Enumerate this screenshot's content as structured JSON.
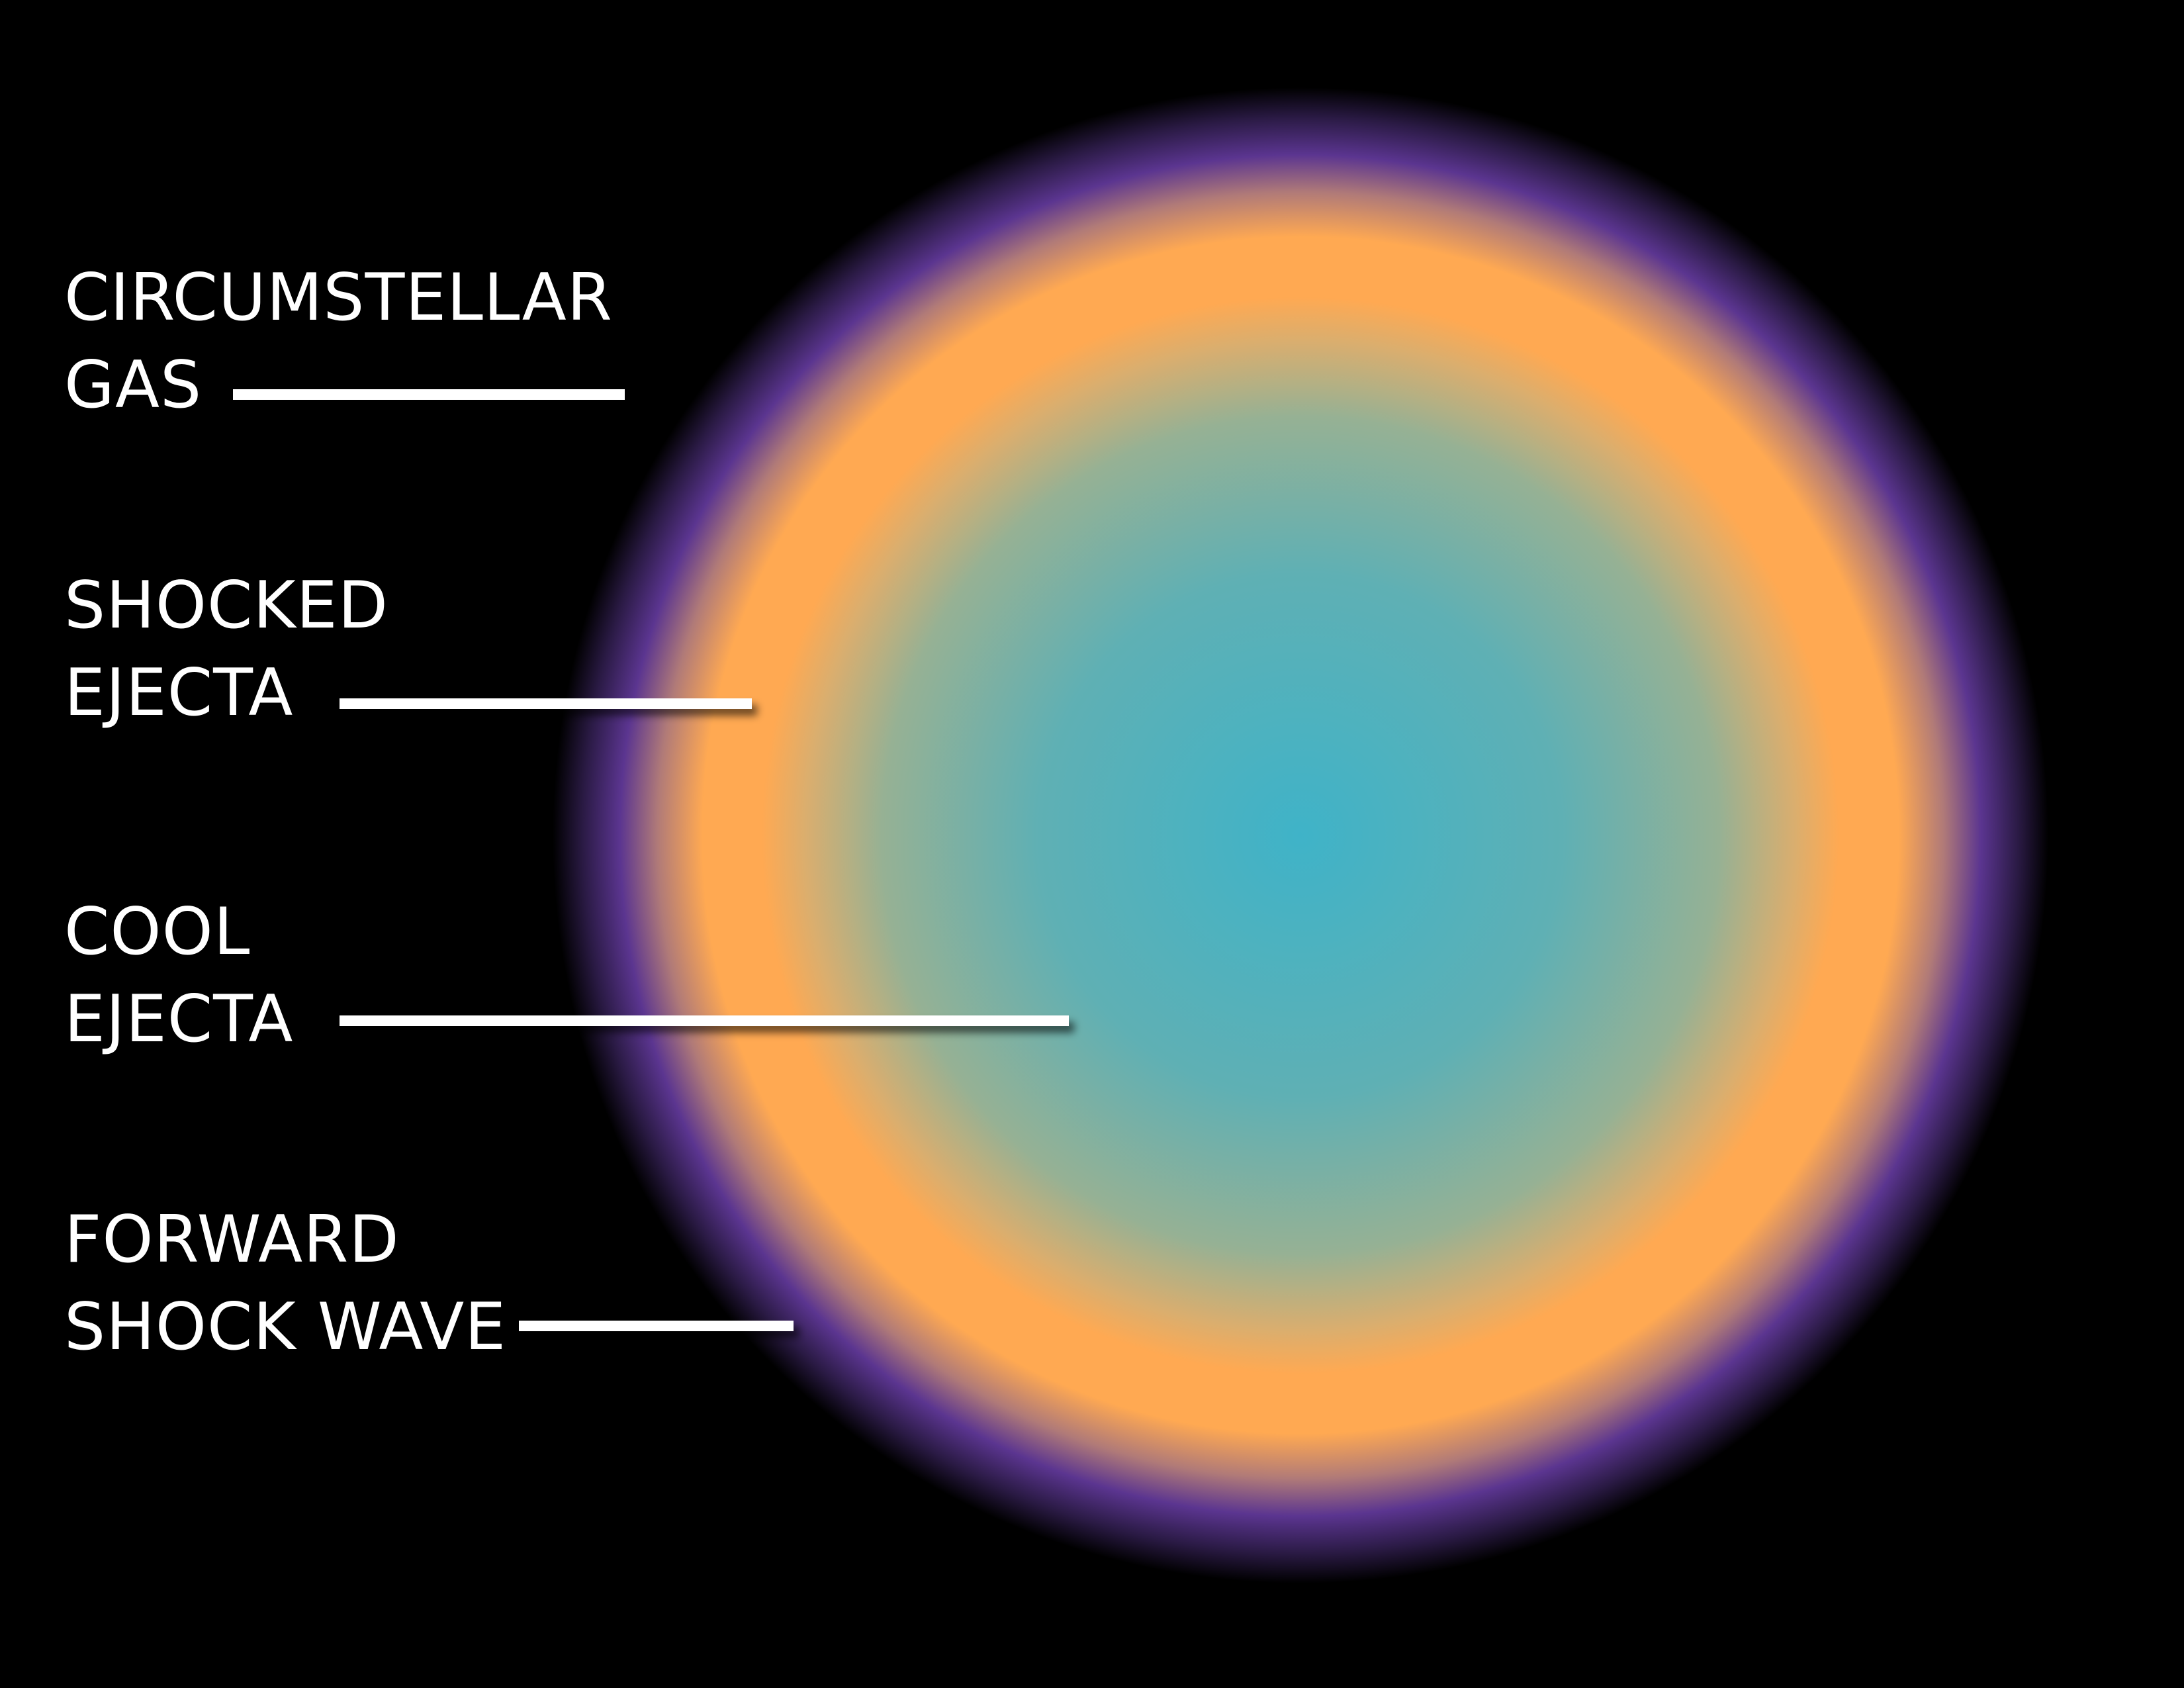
{
  "labels": {
    "circumstellar_gas": {
      "line1": "CIRCUMSTELLAR",
      "line2": "GAS"
    },
    "shocked_ejecta": {
      "line1": "SHOCKED",
      "line2": "EJECTA"
    },
    "cool_ejecta": {
      "line1": "COOL",
      "line2": "EJECTA"
    },
    "forward_shock_wave": {
      "line1": "FORWARD",
      "line2": "SHOCK WAVE"
    }
  },
  "colors": {
    "background": "#000000",
    "core": "#3fb3c8",
    "mid": "#8fb09a",
    "shocked_ring": "#ffa952",
    "outer_glow": "#5b3590",
    "text": "#ffffff",
    "leader_line": "#ffffff"
  }
}
